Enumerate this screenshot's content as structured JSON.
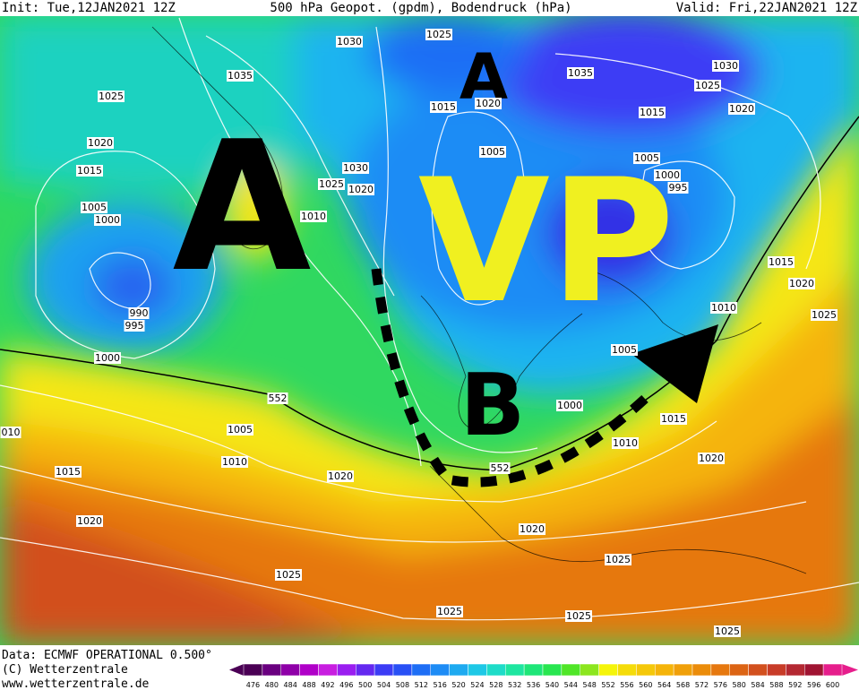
{
  "header": {
    "init": "Init: Tue,12JAN2021 12Z",
    "title": "500 hPa Geopot. (gpdm), Bodendruck (hPa)",
    "valid": "Valid: Fri,22JAN2021 12Z"
  },
  "annotations": {
    "big_a": "A",
    "small_a": "A",
    "vp": "VP",
    "b": "B"
  },
  "isobar_labels": [
    "1030",
    "1025",
    "1035",
    "1035",
    "1030",
    "1025",
    "1025",
    "1015",
    "1020",
    "1015",
    "1020",
    "1020",
    "1005",
    "1005",
    "1015",
    "1030",
    "1025",
    "1020",
    "1000",
    "995",
    "1005",
    "1000",
    "1010",
    "1015",
    "1020",
    "990",
    "995",
    "1010",
    "1025",
    "1000",
    "1005",
    "552",
    "1000",
    "010",
    "1005",
    "1015",
    "1010",
    "1010",
    "552",
    "1020",
    "1015",
    "1020",
    "1020",
    "1020",
    "1025",
    "1025",
    "1025",
    "1025",
    "1025"
  ],
  "footer": {
    "data": "Data: ECMWF OPERATIONAL 0.500°",
    "copyright": "(C) Wetterzentrale",
    "url": "www.wetterzentrale.de"
  },
  "colorbar": {
    "ticks": [
      476,
      480,
      484,
      488,
      492,
      496,
      500,
      504,
      508,
      512,
      516,
      520,
      524,
      528,
      532,
      536,
      540,
      544,
      548,
      552,
      556,
      560,
      564,
      568,
      572,
      576,
      580,
      584,
      588,
      592,
      596,
      600
    ],
    "colors": [
      "#4b0055",
      "#6a0080",
      "#8f00a8",
      "#b000c8",
      "#c81ee0",
      "#9a1ef0",
      "#6428f0",
      "#3c3cf5",
      "#2850f5",
      "#1e6ef5",
      "#1e8cf5",
      "#1eaaf0",
      "#1ec8e6",
      "#1edcc8",
      "#1ee6a0",
      "#1ee678",
      "#28e650",
      "#50e628",
      "#8ce61e",
      "#f5f50a",
      "#f5dc0a",
      "#f5c80a",
      "#f5b40a",
      "#f0a00a",
      "#eb8c0a",
      "#e6780f",
      "#dc6414",
      "#d2501e",
      "#c83c28",
      "#b42832",
      "#a01432",
      "#e61e8c"
    ]
  }
}
